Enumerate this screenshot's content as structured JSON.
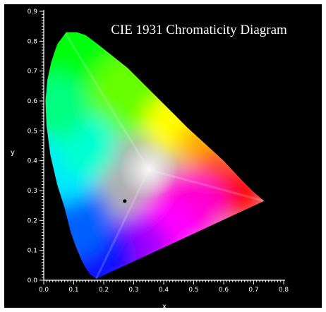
{
  "chart_data": {
    "type": "scatter",
    "title": "CIE 1931 Chromaticity Diagram",
    "xlabel": "x",
    "ylabel": "y",
    "xlim": [
      0.0,
      0.8
    ],
    "ylim": [
      0.0,
      0.9
    ],
    "x_ticks": [
      "0.0",
      "0.1",
      "0.2",
      "0.3",
      "0.4",
      "0.5",
      "0.6",
      "0.7",
      "0.8"
    ],
    "y_ticks": [
      "0.0",
      "0.1",
      "0.2",
      "0.3",
      "0.4",
      "0.5",
      "0.6",
      "0.7",
      "0.8",
      "0.9"
    ],
    "grid": false,
    "series": [
      {
        "marker": "dot",
        "points": [
          {
            "x": 0.27,
            "y": 0.265
          }
        ]
      }
    ],
    "spectral_locus": [
      [
        0.175,
        0.005
      ],
      [
        0.155,
        0.02
      ],
      [
        0.14,
        0.04
      ],
      [
        0.125,
        0.07
      ],
      [
        0.108,
        0.11
      ],
      [
        0.09,
        0.16
      ],
      [
        0.07,
        0.24
      ],
      [
        0.045,
        0.32
      ],
      [
        0.022,
        0.42
      ],
      [
        0.009,
        0.52
      ],
      [
        0.006,
        0.6
      ],
      [
        0.012,
        0.67
      ],
      [
        0.025,
        0.73
      ],
      [
        0.045,
        0.79
      ],
      [
        0.075,
        0.83
      ],
      [
        0.11,
        0.83
      ],
      [
        0.14,
        0.82
      ],
      [
        0.18,
        0.79
      ],
      [
        0.23,
        0.75
      ],
      [
        0.28,
        0.71
      ],
      [
        0.33,
        0.66
      ],
      [
        0.38,
        0.61
      ],
      [
        0.43,
        0.56
      ],
      [
        0.48,
        0.51
      ],
      [
        0.54,
        0.455
      ],
      [
        0.6,
        0.4
      ],
      [
        0.66,
        0.335
      ],
      [
        0.7,
        0.295
      ],
      [
        0.735,
        0.265
      ]
    ],
    "primaries": {
      "red": [
        0.735,
        0.265
      ],
      "green": [
        0.07,
        0.83
      ],
      "blue": [
        0.175,
        0.005
      ],
      "white": [
        0.35,
        0.37
      ]
    }
  }
}
